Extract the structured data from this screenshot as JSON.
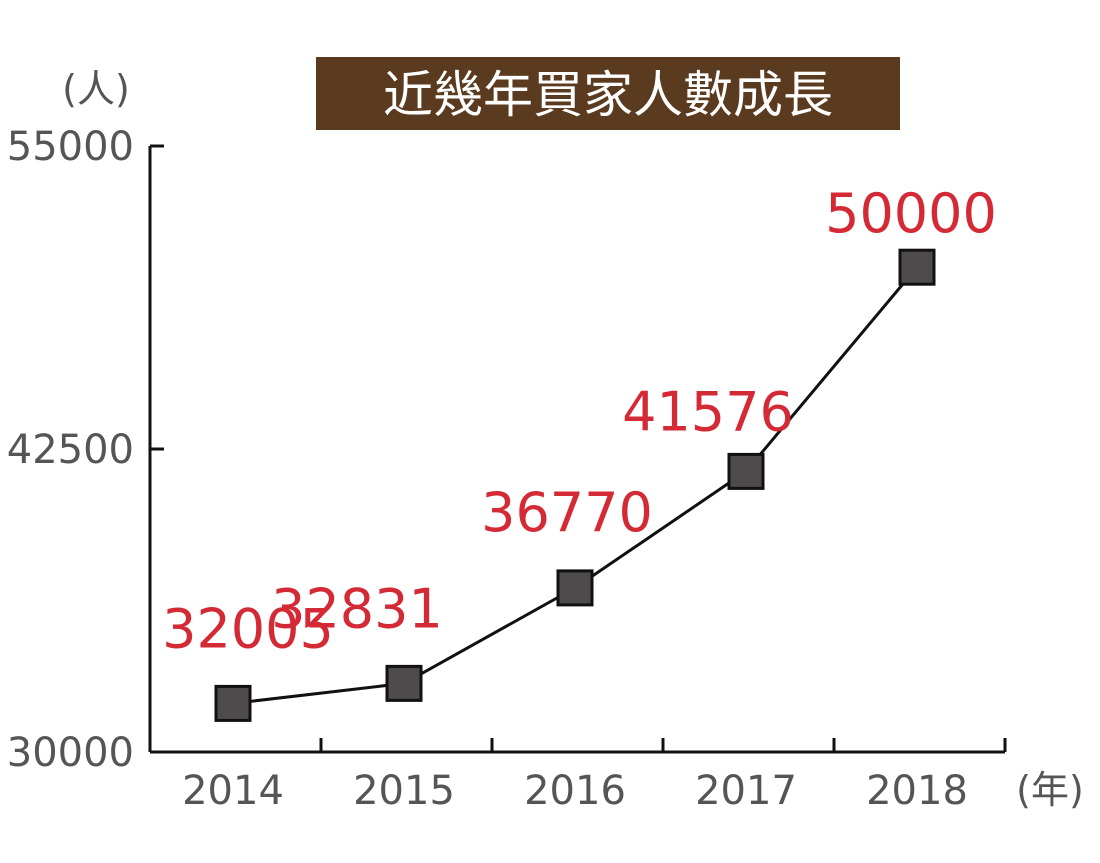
{
  "chart_data": {
    "type": "line",
    "title": "近幾年買家人數成長",
    "ylabel": "(人)",
    "xlabel": "(年)",
    "categories": [
      "2014",
      "2015",
      "2016",
      "2017",
      "2018"
    ],
    "series": [
      {
        "values": [
          32005,
          32831,
          36770,
          41576,
          50000
        ]
      }
    ],
    "data_labels": [
      "32005",
      "32831",
      "36770",
      "41576",
      "50000"
    ],
    "ylim": [
      30000,
      55000
    ],
    "yticks": [
      30000,
      42500,
      55000
    ],
    "ytick_labels": [
      "30000",
      "42500",
      "55000"
    ],
    "grid": false,
    "legend": "none",
    "colors": {
      "title_background": "#5a3b1f",
      "title_text": "#ffffff",
      "line": "#111111",
      "marker_fill": "#4f4b4c",
      "marker_stroke": "#111111",
      "data_label": "#d42a35",
      "axis": "#111111",
      "tick_label": "#555555"
    }
  }
}
